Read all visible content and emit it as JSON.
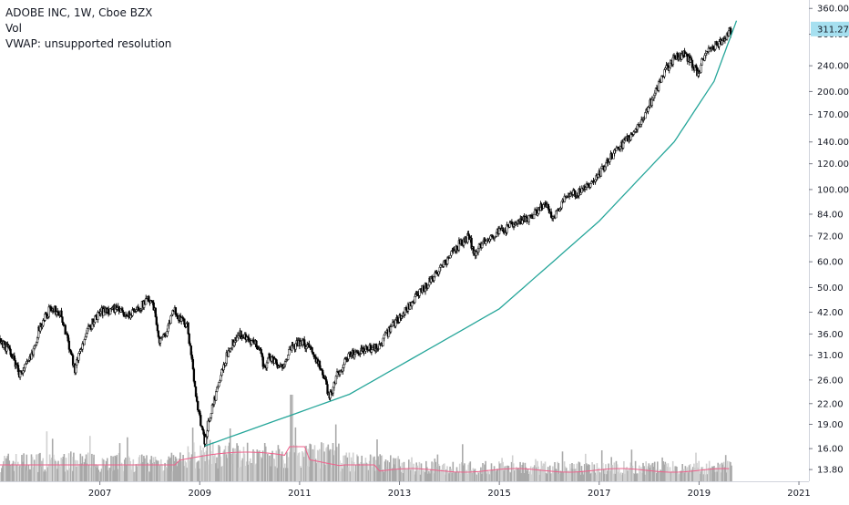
{
  "legend": {
    "symbol_line": "ADOBE INC, 1W, Cboe BZX",
    "vol_label": "Vol",
    "vwap_label": "VWAP: unsupported resolution"
  },
  "price_badge": "311.27",
  "chart_data": {
    "type": "candlestick",
    "title": "ADOBE INC, 1W, Cboe BZX",
    "y_scale": "log",
    "y_ticks": [
      "360.00",
      "300.00",
      "240.00",
      "200.00",
      "170.00",
      "140.00",
      "120.00",
      "100.00",
      "84.00",
      "72.00",
      "60.00",
      "50.00",
      "42.00",
      "36.00",
      "31.00",
      "26.00",
      "22.00",
      "19.00",
      "16.00",
      "13.80"
    ],
    "x_ticks": [
      "2007",
      "2009",
      "2011",
      "2013",
      "2015",
      "2017",
      "2019",
      "2021"
    ],
    "x_range": [
      2005.0,
      2021.2
    ],
    "y_range": [
      13.2,
      370
    ],
    "last_price": 311.27,
    "grid": false,
    "colors": {
      "candle": "#000000",
      "curve": "#26a69a",
      "vol_ma": "#ef5f8a",
      "badge": "#a6e0f0",
      "volume": "#9e9e9e"
    },
    "price_path": [
      [
        2005.0,
        34
      ],
      [
        2005.2,
        32
      ],
      [
        2005.4,
        27
      ],
      [
        2005.6,
        30
      ],
      [
        2005.8,
        38
      ],
      [
        2006.0,
        43
      ],
      [
        2006.2,
        42
      ],
      [
        2006.35,
        35
      ],
      [
        2006.5,
        28
      ],
      [
        2006.6,
        32
      ],
      [
        2006.8,
        38
      ],
      [
        2007.0,
        42
      ],
      [
        2007.3,
        43
      ],
      [
        2007.6,
        41
      ],
      [
        2007.9,
        45
      ],
      [
        2008.0,
        46
      ],
      [
        2008.1,
        42
      ],
      [
        2008.2,
        34
      ],
      [
        2008.35,
        37
      ],
      [
        2008.5,
        43
      ],
      [
        2008.6,
        40
      ],
      [
        2008.75,
        38
      ],
      [
        2008.85,
        29
      ],
      [
        2008.95,
        22
      ],
      [
        2009.1,
        16.5
      ],
      [
        2009.2,
        20
      ],
      [
        2009.4,
        26
      ],
      [
        2009.6,
        33
      ],
      [
        2009.8,
        36
      ],
      [
        2010.0,
        34
      ],
      [
        2010.2,
        33
      ],
      [
        2010.3,
        28
      ],
      [
        2010.4,
        31
      ],
      [
        2010.6,
        28
      ],
      [
        2010.8,
        32
      ],
      [
        2011.0,
        34
      ],
      [
        2011.2,
        33
      ],
      [
        2011.35,
        30
      ],
      [
        2011.5,
        26
      ],
      [
        2011.6,
        23
      ],
      [
        2011.75,
        27
      ],
      [
        2012.0,
        31
      ],
      [
        2012.3,
        32
      ],
      [
        2012.6,
        33
      ],
      [
        2012.9,
        39
      ],
      [
        2013.2,
        44
      ],
      [
        2013.5,
        50
      ],
      [
        2013.8,
        57
      ],
      [
        2014.0,
        62
      ],
      [
        2014.2,
        68
      ],
      [
        2014.4,
        72
      ],
      [
        2014.5,
        63
      ],
      [
        2014.7,
        70
      ],
      [
        2015.0,
        74
      ],
      [
        2015.3,
        78
      ],
      [
        2015.6,
        82
      ],
      [
        2015.9,
        90
      ],
      [
        2016.1,
        82
      ],
      [
        2016.3,
        95
      ],
      [
        2016.6,
        98
      ],
      [
        2016.9,
        105
      ],
      [
        2017.1,
        118
      ],
      [
        2017.4,
        135
      ],
      [
        2017.7,
        150
      ],
      [
        2017.9,
        168
      ],
      [
        2018.1,
        195
      ],
      [
        2018.3,
        230
      ],
      [
        2018.5,
        252
      ],
      [
        2018.7,
        262
      ],
      [
        2018.85,
        245
      ],
      [
        2019.0,
        225
      ],
      [
        2019.05,
        245
      ],
      [
        2019.25,
        272
      ],
      [
        2019.4,
        282
      ],
      [
        2019.55,
        295
      ],
      [
        2019.65,
        311.27
      ]
    ],
    "curve_note": "",
    "curve": [
      [
        2009.1,
        16.3
      ],
      [
        2012.0,
        23.5
      ],
      [
        2015.0,
        43
      ],
      [
        2017.0,
        80
      ],
      [
        2018.5,
        140
      ],
      [
        2019.3,
        215
      ],
      [
        2019.75,
        330
      ]
    ]
  }
}
